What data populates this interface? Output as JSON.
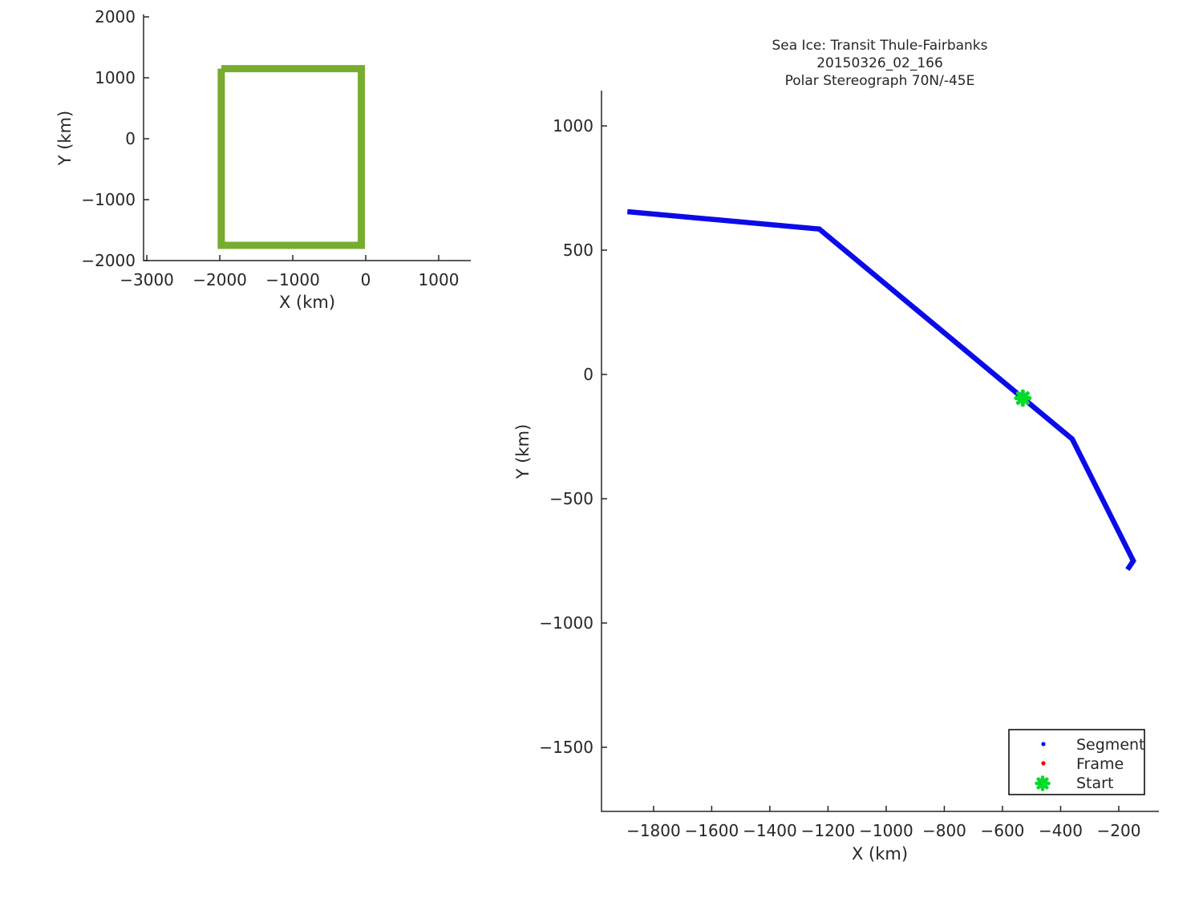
{
  "figure": {
    "background": "#ffffff",
    "axis_color": "#262626",
    "text_color": "#262626"
  },
  "chart_data": [
    {
      "id": "overview",
      "type": "line",
      "title": "",
      "xlabel": "X (km)",
      "ylabel": "Y (km)",
      "xlim": [
        -3045,
        1440
      ],
      "ylim": [
        -2000,
        2040
      ],
      "xticks": [
        -3000,
        -2000,
        -1000,
        0,
        1000
      ],
      "yticks": [
        -2000,
        -1000,
        0,
        1000,
        2000
      ],
      "grid": false,
      "series": [
        {
          "name": "coverage-outline",
          "color": "#77AC30",
          "linewidth": 9,
          "x": [
            -1980,
            -60,
            -60,
            -1980,
            -1980
          ],
          "y": [
            1150,
            1150,
            -1750,
            -1750,
            1150
          ]
        }
      ]
    },
    {
      "id": "transit",
      "type": "line",
      "title_lines": [
        "Sea Ice: Transit Thule-Fairbanks",
        "20150326_02_166",
        "Polar Stereograph 70N/-45E"
      ],
      "xlabel": "X (km)",
      "ylabel": "Y (km)",
      "xlim": [
        -1979,
        -62
      ],
      "ylim": [
        -1758,
        1142
      ],
      "xticks": [
        -1800,
        -1600,
        -1400,
        -1200,
        -1000,
        -800,
        -600,
        -400,
        -200
      ],
      "yticks": [
        -1500,
        -1000,
        -500,
        0,
        500,
        1000
      ],
      "grid": false,
      "series": [
        {
          "name": "Segment",
          "color": "#0B0BE8",
          "linewidth": 6.5,
          "x": [
            -1890,
            -1230,
            -360,
            -150,
            -170
          ],
          "y": [
            655,
            585,
            -260,
            -750,
            -785
          ]
        },
        {
          "name": "Start",
          "marker": "asterisk",
          "color": "#00DC28",
          "markersize": 17,
          "x": [
            -530
          ],
          "y": [
            -95
          ]
        }
      ],
      "legend": {
        "position": "lower right",
        "entries": [
          {
            "label": "Segment",
            "marker": "dot",
            "color": "#0B0BE8"
          },
          {
            "label": "Frame",
            "marker": "dot",
            "color": "#EE0000"
          },
          {
            "label": "Start",
            "marker": "asterisk",
            "color": "#00DC28"
          }
        ]
      }
    }
  ]
}
